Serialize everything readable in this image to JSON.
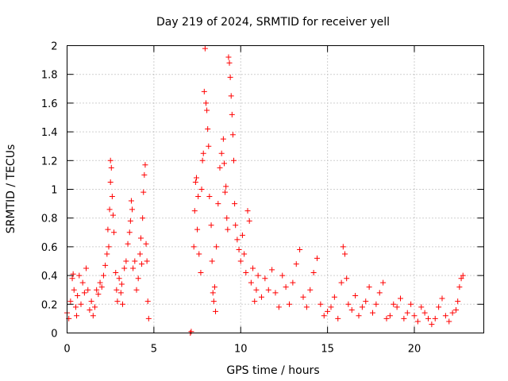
{
  "chart_data": {
    "type": "scatter",
    "title": "Day 219 of 2024, SRMTID for receiver yell",
    "xlabel": "GPS time / hours",
    "ylabel": "SRMTID / TECUs",
    "xlim": [
      0,
      24
    ],
    "ylim": [
      0,
      2
    ],
    "xticks": [
      0,
      5,
      10,
      15,
      20
    ],
    "xtick_labels": [
      "0",
      "5",
      "10",
      "15",
      "20"
    ],
    "yticks": [
      0,
      0.2,
      0.4,
      0.6,
      0.8,
      1,
      1.2,
      1.4,
      1.6,
      1.8,
      2
    ],
    "ytick_labels": [
      "0",
      "0.2",
      "0.4",
      "0.6",
      "0.8",
      "1",
      "1.2",
      "1.4",
      "1.6",
      "1.8",
      "2"
    ],
    "grid": true,
    "marker": "+",
    "color": "#ff0000",
    "series": [
      {
        "name": "SRMTID",
        "points": [
          [
            0.0,
            0.14
          ],
          [
            0.1,
            0.1
          ],
          [
            0.2,
            0.22
          ],
          [
            0.3,
            0.38
          ],
          [
            0.35,
            0.41
          ],
          [
            0.4,
            0.3
          ],
          [
            0.5,
            0.18
          ],
          [
            0.55,
            0.12
          ],
          [
            0.6,
            0.26
          ],
          [
            0.7,
            0.4
          ],
          [
            0.8,
            0.2
          ],
          [
            0.9,
            0.35
          ],
          [
            1.0,
            0.28
          ],
          [
            1.1,
            0.45
          ],
          [
            1.2,
            0.3
          ],
          [
            1.3,
            0.16
          ],
          [
            1.4,
            0.22
          ],
          [
            1.5,
            0.12
          ],
          [
            1.6,
            0.18
          ],
          [
            1.7,
            0.3
          ],
          [
            1.8,
            0.27
          ],
          [
            1.9,
            0.35
          ],
          [
            2.0,
            0.32
          ],
          [
            2.1,
            0.4
          ],
          [
            2.2,
            0.47
          ],
          [
            2.3,
            0.55
          ],
          [
            2.35,
            0.72
          ],
          [
            2.4,
            0.6
          ],
          [
            2.45,
            0.86
          ],
          [
            2.5,
            1.05
          ],
          [
            2.5,
            1.2
          ],
          [
            2.55,
            1.15
          ],
          [
            2.6,
            0.95
          ],
          [
            2.65,
            0.82
          ],
          [
            2.7,
            0.7
          ],
          [
            2.8,
            0.42
          ],
          [
            2.85,
            0.3
          ],
          [
            2.9,
            0.22
          ],
          [
            3.0,
            0.38
          ],
          [
            3.1,
            0.28
          ],
          [
            3.15,
            0.34
          ],
          [
            3.2,
            0.2
          ],
          [
            3.3,
            0.45
          ],
          [
            3.4,
            0.5
          ],
          [
            3.5,
            0.62
          ],
          [
            3.6,
            0.7
          ],
          [
            3.65,
            0.78
          ],
          [
            3.7,
            0.92
          ],
          [
            3.75,
            0.86
          ],
          [
            3.8,
            0.45
          ],
          [
            3.9,
            0.5
          ],
          [
            4.0,
            0.3
          ],
          [
            4.1,
            0.38
          ],
          [
            4.2,
            0.55
          ],
          [
            4.25,
            0.66
          ],
          [
            4.3,
            0.48
          ],
          [
            4.35,
            0.8
          ],
          [
            4.4,
            0.98
          ],
          [
            4.45,
            1.1
          ],
          [
            4.5,
            1.17
          ],
          [
            4.55,
            0.62
          ],
          [
            4.6,
            0.5
          ],
          [
            4.65,
            0.22
          ],
          [
            4.7,
            0.1
          ],
          [
            7.1,
            0.0
          ],
          [
            7.15,
            0.01
          ],
          [
            7.3,
            0.6
          ],
          [
            7.35,
            0.85
          ],
          [
            7.4,
            1.05
          ],
          [
            7.45,
            1.08
          ],
          [
            7.5,
            0.72
          ],
          [
            7.55,
            0.95
          ],
          [
            7.6,
            0.55
          ],
          [
            7.7,
            0.42
          ],
          [
            7.75,
            1.0
          ],
          [
            7.8,
            1.2
          ],
          [
            7.85,
            1.25
          ],
          [
            7.9,
            1.68
          ],
          [
            7.95,
            1.98
          ],
          [
            8.0,
            1.6
          ],
          [
            8.05,
            1.55
          ],
          [
            8.1,
            1.42
          ],
          [
            8.15,
            1.3
          ],
          [
            8.2,
            0.95
          ],
          [
            8.3,
            0.75
          ],
          [
            8.35,
            0.5
          ],
          [
            8.4,
            0.28
          ],
          [
            8.45,
            0.22
          ],
          [
            8.5,
            0.32
          ],
          [
            8.55,
            0.15
          ],
          [
            8.6,
            0.6
          ],
          [
            8.7,
            0.9
          ],
          [
            8.8,
            1.15
          ],
          [
            8.9,
            1.25
          ],
          [
            9.0,
            1.35
          ],
          [
            9.05,
            1.18
          ],
          [
            9.1,
            0.98
          ],
          [
            9.15,
            1.02
          ],
          [
            9.2,
            0.8
          ],
          [
            9.25,
            0.72
          ],
          [
            9.3,
            1.92
          ],
          [
            9.35,
            1.88
          ],
          [
            9.4,
            1.78
          ],
          [
            9.45,
            1.65
          ],
          [
            9.5,
            1.52
          ],
          [
            9.55,
            1.38
          ],
          [
            9.6,
            1.2
          ],
          [
            9.65,
            0.9
          ],
          [
            9.7,
            0.75
          ],
          [
            9.8,
            0.65
          ],
          [
            9.9,
            0.58
          ],
          [
            10.0,
            0.5
          ],
          [
            10.1,
            0.68
          ],
          [
            10.2,
            0.55
          ],
          [
            10.3,
            0.42
          ],
          [
            10.4,
            0.85
          ],
          [
            10.5,
            0.78
          ],
          [
            10.6,
            0.35
          ],
          [
            10.7,
            0.45
          ],
          [
            10.8,
            0.22
          ],
          [
            10.9,
            0.3
          ],
          [
            11.0,
            0.4
          ],
          [
            11.2,
            0.25
          ],
          [
            11.4,
            0.38
          ],
          [
            11.6,
            0.3
          ],
          [
            11.8,
            0.44
          ],
          [
            12.0,
            0.28
          ],
          [
            12.2,
            0.18
          ],
          [
            12.4,
            0.4
          ],
          [
            12.6,
            0.32
          ],
          [
            12.8,
            0.2
          ],
          [
            13.0,
            0.35
          ],
          [
            13.2,
            0.48
          ],
          [
            13.4,
            0.58
          ],
          [
            13.6,
            0.25
          ],
          [
            13.8,
            0.18
          ],
          [
            14.0,
            0.3
          ],
          [
            14.2,
            0.42
          ],
          [
            14.4,
            0.52
          ],
          [
            14.6,
            0.2
          ],
          [
            14.8,
            0.12
          ],
          [
            15.0,
            0.15
          ],
          [
            15.2,
            0.18
          ],
          [
            15.4,
            0.25
          ],
          [
            15.6,
            0.1
          ],
          [
            15.8,
            0.35
          ],
          [
            15.9,
            0.6
          ],
          [
            16.0,
            0.55
          ],
          [
            16.1,
            0.38
          ],
          [
            16.2,
            0.2
          ],
          [
            16.4,
            0.16
          ],
          [
            16.6,
            0.26
          ],
          [
            16.8,
            0.12
          ],
          [
            17.0,
            0.18
          ],
          [
            17.2,
            0.22
          ],
          [
            17.4,
            0.32
          ],
          [
            17.6,
            0.14
          ],
          [
            17.8,
            0.2
          ],
          [
            18.0,
            0.28
          ],
          [
            18.2,
            0.35
          ],
          [
            18.4,
            0.1
          ],
          [
            18.6,
            0.12
          ],
          [
            18.8,
            0.2
          ],
          [
            19.0,
            0.18
          ],
          [
            19.2,
            0.24
          ],
          [
            19.4,
            0.1
          ],
          [
            19.6,
            0.14
          ],
          [
            19.8,
            0.2
          ],
          [
            20.0,
            0.12
          ],
          [
            20.2,
            0.08
          ],
          [
            20.4,
            0.18
          ],
          [
            20.6,
            0.14
          ],
          [
            20.8,
            0.1
          ],
          [
            21.0,
            0.06
          ],
          [
            21.2,
            0.1
          ],
          [
            21.4,
            0.18
          ],
          [
            21.6,
            0.24
          ],
          [
            21.8,
            0.12
          ],
          [
            22.0,
            0.08
          ],
          [
            22.2,
            0.14
          ],
          [
            22.4,
            0.16
          ],
          [
            22.5,
            0.22
          ],
          [
            22.6,
            0.32
          ],
          [
            22.7,
            0.38
          ],
          [
            22.8,
            0.4
          ]
        ]
      }
    ]
  }
}
